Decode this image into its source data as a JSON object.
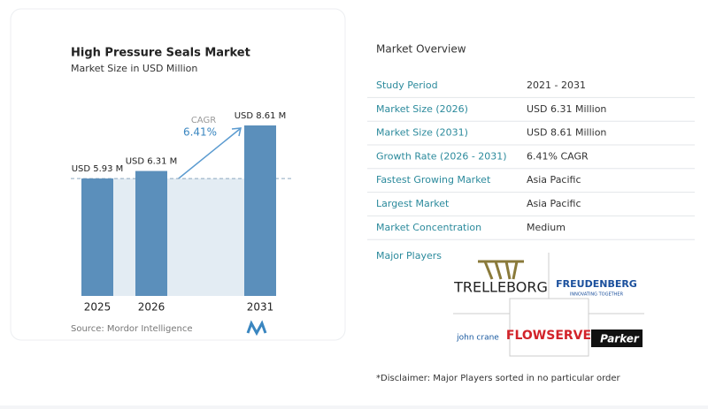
{
  "chart_data": {
    "type": "bar",
    "title": "High Pressure Seals Market",
    "subtitle": "Market Size in USD Million",
    "categories": [
      "2025",
      "2026",
      "2031"
    ],
    "values": [
      5.93,
      6.31,
      8.61
    ],
    "value_labels": [
      "USD 5.93 M",
      "USD 6.31 M",
      "USD 8.61 M"
    ],
    "color": "#5b8fbb",
    "cagr_label": "CAGR",
    "cagr": "6.41%",
    "source": "Source: Mordor Intelligence"
  },
  "overview": {
    "title": "Market Overview",
    "rows": [
      [
        "Study Period",
        "2021 - 2031"
      ],
      [
        "Market Size (2026)",
        "USD 6.31 Million"
      ],
      [
        "Market Size (2031)",
        "USD 8.61 Million"
      ],
      [
        "Growth Rate (2026 - 2031)",
        "6.41% CAGR"
      ],
      [
        "Fastest Growing Market",
        "Asia Pacific"
      ],
      [
        "Largest Market",
        "Asia Pacific"
      ],
      [
        "Market Concentration",
        "Medium"
      ]
    ]
  },
  "major_players": {
    "title": "Major Players",
    "logos": [
      "TRELLEBORG",
      "FREUDENBERG",
      "INNOVATING TOGETHER",
      "john crane",
      "FLOWSERVE",
      "Parker"
    ]
  },
  "disclaimer": "*Disclaimer: Major Players sorted in no particular order"
}
